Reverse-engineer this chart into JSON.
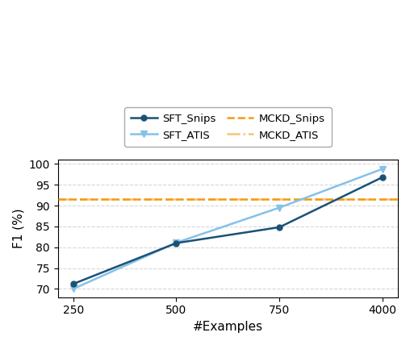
{
  "x_positions": [
    0,
    1,
    2,
    3
  ],
  "x_labels": [
    "250",
    "500",
    "750",
    "4000"
  ],
  "sft_snips": [
    71.2,
    81.0,
    84.8,
    96.8
  ],
  "sft_atis": [
    70.0,
    81.1,
    89.5,
    98.8
  ],
  "mckd_snips": 91.5,
  "mckd_atis": 91.5,
  "sft_snips_color": "#1a5276",
  "sft_atis_color": "#85c1e9",
  "mckd_snips_color": "#f39c12",
  "mckd_atis_color": "#f8c471",
  "ylabel": "F1 (%)",
  "xlabel": "#Examples",
  "ylim": [
    68,
    101
  ],
  "yticks": [
    70,
    75,
    80,
    85,
    90,
    95,
    100
  ],
  "figsize": [
    5.08,
    4.28
  ],
  "dpi": 100
}
